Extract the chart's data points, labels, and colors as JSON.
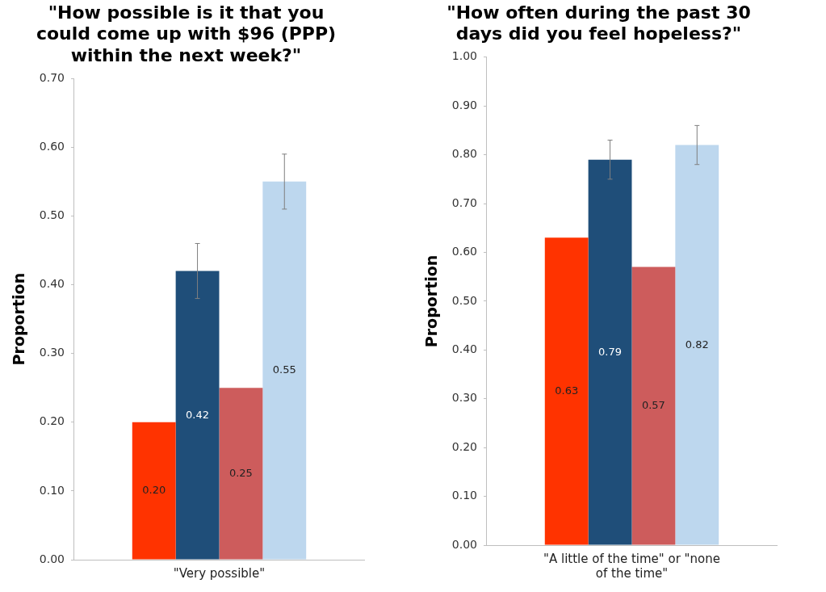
{
  "chart_data": [
    {
      "type": "bar",
      "title": "\"How possible is it that you could come up with $96 (PPP) within the next week?\"",
      "ylabel": "Proportion",
      "categories": [
        "\"Very possible\""
      ],
      "series": [
        {
          "color": "#ff3300",
          "values": [
            0.2
          ],
          "value_labels": [
            "0.20"
          ]
        },
        {
          "color": "#1f4e79",
          "values": [
            0.42
          ],
          "errors": [
            0.04
          ],
          "value_labels": [
            "0.42"
          ]
        },
        {
          "color": "#cd5c5c",
          "values": [
            0.25
          ],
          "value_labels": [
            "0.25"
          ]
        },
        {
          "color": "#bdd7ee",
          "values": [
            0.55
          ],
          "errors": [
            0.04
          ],
          "value_labels": [
            "0.55"
          ]
        }
      ],
      "ylim": [
        0,
        0.7
      ],
      "yticks": [
        {
          "value": 0,
          "label": "0.00"
        },
        {
          "value": 0.1,
          "label": "0.10"
        },
        {
          "value": 0.2,
          "label": "0.20"
        },
        {
          "value": 0.3,
          "label": "0.30"
        },
        {
          "value": 0.4,
          "label": "0.40"
        },
        {
          "value": 0.5,
          "label": "0.50"
        },
        {
          "value": 0.6,
          "label": "0.60"
        },
        {
          "value": 0.7,
          "label": "0.70"
        }
      ],
      "grid": false,
      "legend": false
    },
    {
      "type": "bar",
      "title": "\"How often during the past 30 days did you feel hopeless?\"",
      "ylabel": "Proportion",
      "categories": [
        "\"A little of the time\" or \"none of the time\""
      ],
      "series": [
        {
          "color": "#ff3300",
          "values": [
            0.63
          ],
          "value_labels": [
            "0.63"
          ]
        },
        {
          "color": "#1f4e79",
          "values": [
            0.79
          ],
          "errors": [
            0.04
          ],
          "value_labels": [
            "0.79"
          ]
        },
        {
          "color": "#cd5c5c",
          "values": [
            0.57
          ],
          "value_labels": [
            "0.57"
          ]
        },
        {
          "color": "#bdd7ee",
          "values": [
            0.82
          ],
          "errors": [
            0.04
          ],
          "value_labels": [
            "0.82"
          ]
        }
      ],
      "ylim": [
        0,
        1
      ],
      "yticks": [
        {
          "value": 0,
          "label": "0.00"
        },
        {
          "value": 0.1,
          "label": "0.10"
        },
        {
          "value": 0.2,
          "label": "0.20"
        },
        {
          "value": 0.3,
          "label": "0.30"
        },
        {
          "value": 0.4,
          "label": "0.40"
        },
        {
          "value": 0.5,
          "label": "0.50"
        },
        {
          "value": 0.6,
          "label": "0.60"
        },
        {
          "value": 0.7,
          "label": "0.70"
        },
        {
          "value": 0.8,
          "label": "0.80"
        },
        {
          "value": 0.9,
          "label": "0.90"
        },
        {
          "value": 1,
          "label": "1.00"
        }
      ],
      "grid": false,
      "legend": false
    }
  ]
}
